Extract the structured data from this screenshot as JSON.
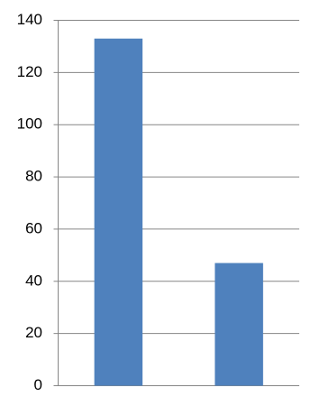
{
  "chart_data": {
    "type": "bar",
    "categories": [
      null,
      null
    ],
    "values": [
      133,
      47
    ],
    "color": "#4f81bd",
    "ylim": [
      0,
      140
    ],
    "yticks": [
      0,
      20,
      40,
      60,
      80,
      100,
      120,
      140
    ],
    "grid": true
  }
}
